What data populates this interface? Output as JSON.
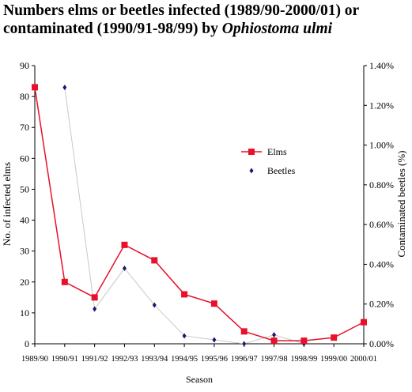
{
  "title": {
    "line1": "Numbers elms or beetles infected (1989/90-2000/01) or",
    "line2_prefix": "contaminated (1990/91-98/99) by ",
    "line2_italic": "Ophiostoma ulmi"
  },
  "chart_data": {
    "type": "line",
    "title": "Numbers elms or beetles infected (1989/90-2000/01) or contaminated (1990/91-98/99) by Ophiostoma ulmi",
    "xlabel": "Season",
    "ylabel": "No. of infected elms",
    "y2label": "Contaminated beetles (%)",
    "categories": [
      "1989/90",
      "1990/91",
      "1991/92",
      "1992/93",
      "1993/94",
      "1994/95",
      "1995/96",
      "1996/97",
      "1997/98",
      "1998/99",
      "1999/00",
      "2000/01"
    ],
    "ylim": [
      0,
      90
    ],
    "yticks": [
      "0",
      "10",
      "20",
      "30",
      "40",
      "50",
      "60",
      "70",
      "80",
      "90"
    ],
    "y2lim": [
      0,
      1.4
    ],
    "y2ticks": [
      "0.00%",
      "0.20%",
      "0.40%",
      "0.60%",
      "0.80%",
      "1.00%",
      "1.20%",
      "1.40%"
    ],
    "grid": false,
    "legend_position": "right-center",
    "series": [
      {
        "name": "Elms",
        "axis": "left",
        "color": "#e8102a",
        "marker": "square",
        "values": [
          83,
          20,
          15,
          32,
          27,
          16,
          13,
          4,
          1,
          1,
          2,
          7
        ]
      },
      {
        "name": "Beetles",
        "axis": "right",
        "color": "#1a1a6e",
        "line_color": "#c8c8c8",
        "marker": "diamond",
        "values": [
          null,
          1.29,
          0.175,
          0.38,
          0.195,
          0.04,
          0.02,
          0.0,
          0.045,
          0.0,
          null,
          null
        ]
      }
    ]
  }
}
